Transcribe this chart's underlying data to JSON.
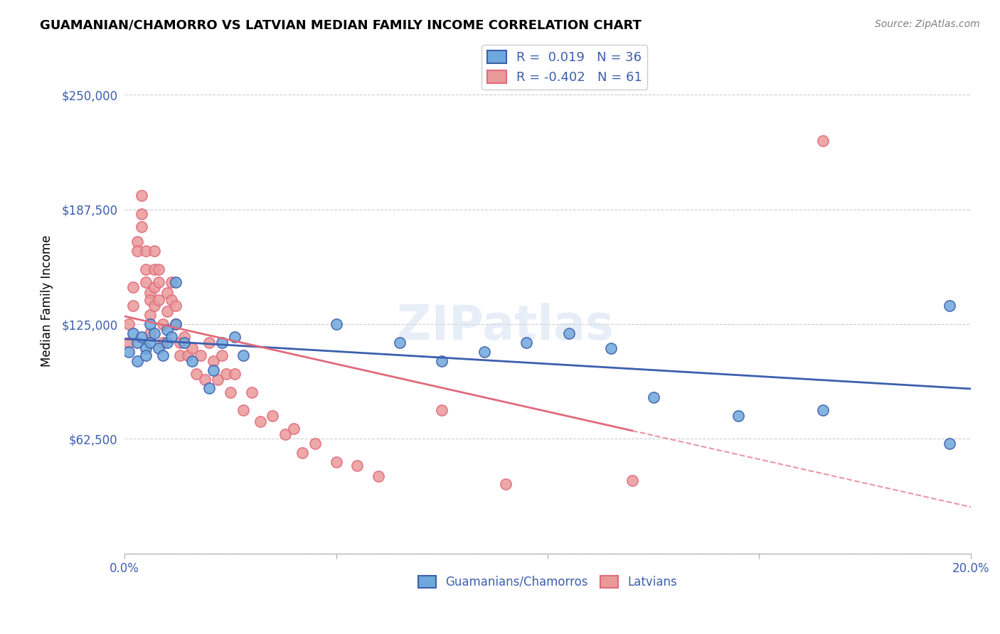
{
  "title": "GUAMANIAN/CHAMORRO VS LATVIAN MEDIAN FAMILY INCOME CORRELATION CHART",
  "source": "Source: ZipAtlas.com",
  "xlabel": "",
  "ylabel": "Median Family Income",
  "xlim": [
    0.0,
    0.2
  ],
  "ylim": [
    0,
    275000
  ],
  "yticks": [
    0,
    62500,
    125000,
    187500,
    250000
  ],
  "ytick_labels": [
    "",
    "$62,500",
    "$125,000",
    "$187,500",
    "$250,000"
  ],
  "xticks": [
    0.0,
    0.05,
    0.1,
    0.15,
    0.2
  ],
  "xtick_labels": [
    "0.0%",
    "",
    "",
    "",
    "20.0%"
  ],
  "blue_R": 0.019,
  "blue_N": 36,
  "pink_R": -0.402,
  "pink_N": 61,
  "blue_color": "#6fa8dc",
  "pink_color": "#ea9999",
  "blue_line_color": "#3d5fad",
  "pink_line_color": "#e06b7d",
  "grid_color": "#cccccc",
  "background_color": "#ffffff",
  "watermark": "ZIPatlas",
  "blue_scatter_x": [
    0.001,
    0.002,
    0.003,
    0.003,
    0.004,
    0.005,
    0.005,
    0.006,
    0.006,
    0.007,
    0.008,
    0.009,
    0.01,
    0.01,
    0.011,
    0.012,
    0.012,
    0.014,
    0.016,
    0.02,
    0.021,
    0.023,
    0.026,
    0.028,
    0.05,
    0.065,
    0.075,
    0.085,
    0.095,
    0.105,
    0.115,
    0.125,
    0.145,
    0.165,
    0.195,
    0.195
  ],
  "blue_scatter_y": [
    110000,
    120000,
    115000,
    105000,
    118000,
    112000,
    108000,
    125000,
    115000,
    120000,
    112000,
    108000,
    115000,
    122000,
    118000,
    125000,
    148000,
    115000,
    105000,
    90000,
    100000,
    115000,
    118000,
    108000,
    125000,
    115000,
    105000,
    110000,
    115000,
    120000,
    112000,
    85000,
    75000,
    78000,
    135000,
    60000
  ],
  "pink_scatter_x": [
    0.001,
    0.001,
    0.002,
    0.002,
    0.003,
    0.003,
    0.004,
    0.004,
    0.004,
    0.005,
    0.005,
    0.005,
    0.006,
    0.006,
    0.006,
    0.006,
    0.007,
    0.007,
    0.007,
    0.007,
    0.008,
    0.008,
    0.008,
    0.009,
    0.009,
    0.01,
    0.01,
    0.011,
    0.011,
    0.012,
    0.012,
    0.013,
    0.013,
    0.014,
    0.015,
    0.016,
    0.017,
    0.018,
    0.019,
    0.02,
    0.021,
    0.022,
    0.023,
    0.024,
    0.025,
    0.026,
    0.028,
    0.03,
    0.032,
    0.035,
    0.038,
    0.04,
    0.042,
    0.045,
    0.05,
    0.055,
    0.06,
    0.075,
    0.09,
    0.12,
    0.165
  ],
  "pink_scatter_y": [
    125000,
    115000,
    145000,
    135000,
    170000,
    165000,
    195000,
    185000,
    178000,
    165000,
    155000,
    148000,
    142000,
    138000,
    130000,
    120000,
    165000,
    155000,
    145000,
    135000,
    155000,
    148000,
    138000,
    125000,
    115000,
    142000,
    132000,
    148000,
    138000,
    135000,
    125000,
    115000,
    108000,
    118000,
    108000,
    112000,
    98000,
    108000,
    95000,
    115000,
    105000,
    95000,
    108000,
    98000,
    88000,
    98000,
    78000,
    88000,
    72000,
    75000,
    65000,
    68000,
    55000,
    60000,
    50000,
    48000,
    42000,
    78000,
    38000,
    40000,
    225000
  ]
}
